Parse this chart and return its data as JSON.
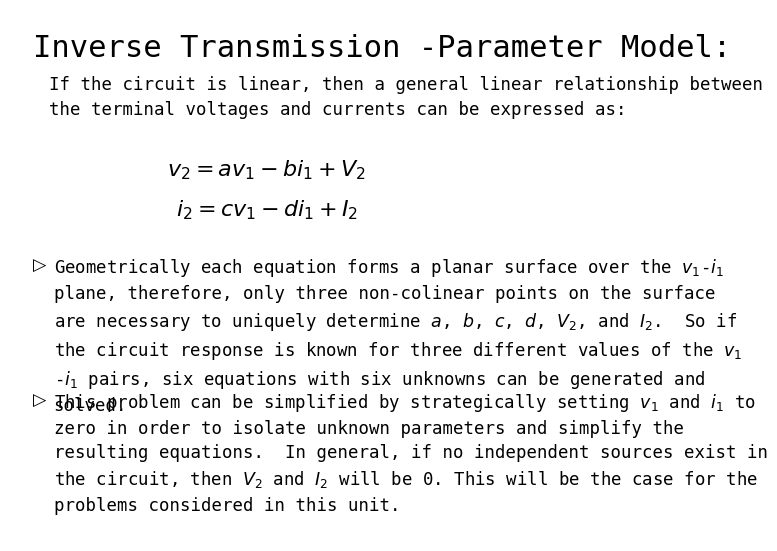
{
  "title": "Inverse Transmission -Parameter Model:",
  "title_fontsize": 22,
  "title_font": "DejaVu Sans Mono",
  "body_font": "DejaVu Sans Mono",
  "body_fontsize": 12.5,
  "bg_color": "#ffffff",
  "text_color": "#000000",
  "intro_text": "If the circuit is linear, then a general linear relationship between\nthe terminal voltages and currents can be expressed as:",
  "eq1": "$v_2 = av_1 - bi_1 + V_2$",
  "eq2": "$i_2 = cv_1 - di_1 + I_2$",
  "bullet1_lines": [
    "Geometrically each equation forms a planar surface over the $v_1$-$i_1$",
    "plane, therefore, only three non-colinear points on the surface",
    "are necessary to uniquely determine $a$, $b$, $c$, $d$, $V_2$, and $I_2$.  So if",
    "the circuit response is known for three different values of the $v_1$",
    "-$i_1$ pairs, six equations with six unknowns can be generated and",
    "solved."
  ],
  "bullet2_lines": [
    "This problem can be simplified by strategically setting $v_1$ and $i_1$ to",
    "zero in order to isolate unknown parameters and simplify the",
    "resulting equations.  In general, if no independent sources exist in",
    "the circuit, then $V_2$ and $I_2$ will be 0. This will be the case for the",
    "problems considered in this unit."
  ],
  "bullet_symbol": "▷",
  "eq_fontsize": 16,
  "bullet_fontsize": 12.5
}
